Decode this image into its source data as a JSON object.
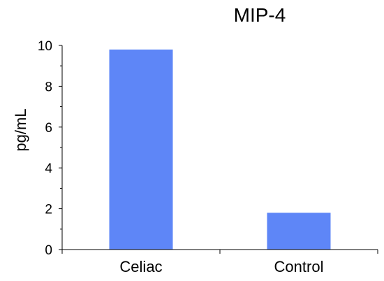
{
  "chart_data": {
    "type": "bar",
    "title": "MIP-4",
    "ylabel": "pg/mL",
    "xlabel": "",
    "categories": [
      "Celiac",
      "Control"
    ],
    "values": [
      9.8,
      1.8
    ],
    "ylim": [
      0,
      10
    ],
    "yticks": [
      0,
      2,
      4,
      6,
      8,
      10
    ],
    "bar_color": "#5e86f7",
    "grid": false,
    "legend": "none"
  }
}
